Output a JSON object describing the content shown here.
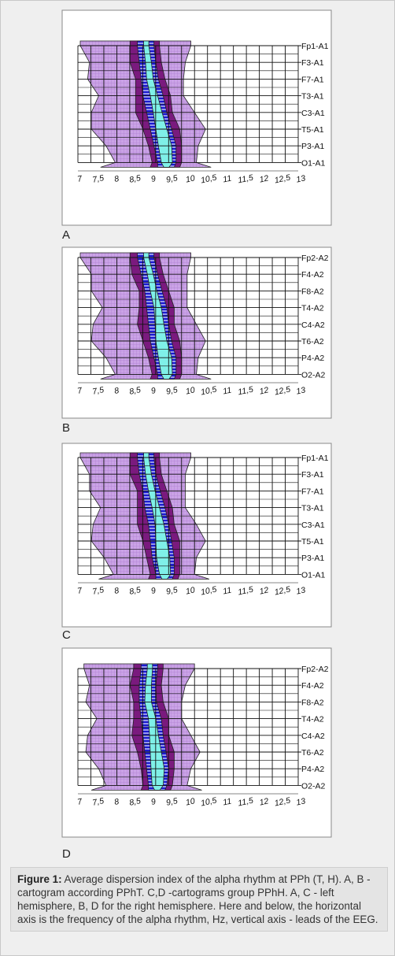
{
  "panels": [
    {
      "label": "A",
      "leads": [
        "Fp1-A1",
        "F3-A1",
        "F7-A1",
        "T3-A1",
        "C3-A1",
        "T5-A1",
        "P3-A1",
        "O1-A1"
      ],
      "x_ticks": [
        "7",
        "7,5",
        "8",
        "8,5",
        "9",
        "9,5",
        "10",
        "10,5",
        "11",
        "11,5",
        "12",
        "12,5",
        "13"
      ]
    },
    {
      "label": "B",
      "leads": [
        "Fp2-A2",
        "F4-A2",
        "F8-A2",
        "T4-A2",
        "C4-A2",
        "T6-A2",
        "P4-A2",
        "O2-A2"
      ],
      "x_ticks": [
        "7",
        "7,5",
        "8",
        "8,5",
        "9",
        "9,5",
        "10",
        "10,5",
        "11",
        "11,5",
        "12",
        "12,5",
        "13"
      ]
    },
    {
      "label": "C",
      "leads": [
        "Fp1-A1",
        "F3-A1",
        "F7-A1",
        "T3-A1",
        "C3-A1",
        "T5-A1",
        "P3-A1",
        "O1-A1"
      ],
      "x_ticks": [
        "7",
        "7,5",
        "8",
        "8,5",
        "9",
        "9,5",
        "10",
        "10,5",
        "11",
        "11,5",
        "12",
        "12,5",
        "13"
      ]
    },
    {
      "label": "D",
      "leads": [
        "Fp2-A2",
        "F4-A2",
        "F8-A2",
        "T4-A2",
        "C4-A2",
        "T6-A2",
        "P4-A2",
        "O2-A2"
      ],
      "x_ticks": [
        "7",
        "7,5",
        "8",
        "8,5",
        "9",
        "9,5",
        "10",
        "10,5",
        "11",
        "11,5",
        "12",
        "12,5",
        "13"
      ]
    }
  ],
  "caption": {
    "label": "Figure 1:",
    "text": "Average dispersion index of the alpha rhythm at PPh (T, H). A, B - cartogram according PPhT. C,D -cartograms group PPhH. A, C - left hemisphere, B, D for the right hemisphere. Here and below, the horizontal axis is the frequency of the alpha rhythm, Hz, vertical axis - leads of the EEG."
  }
}
